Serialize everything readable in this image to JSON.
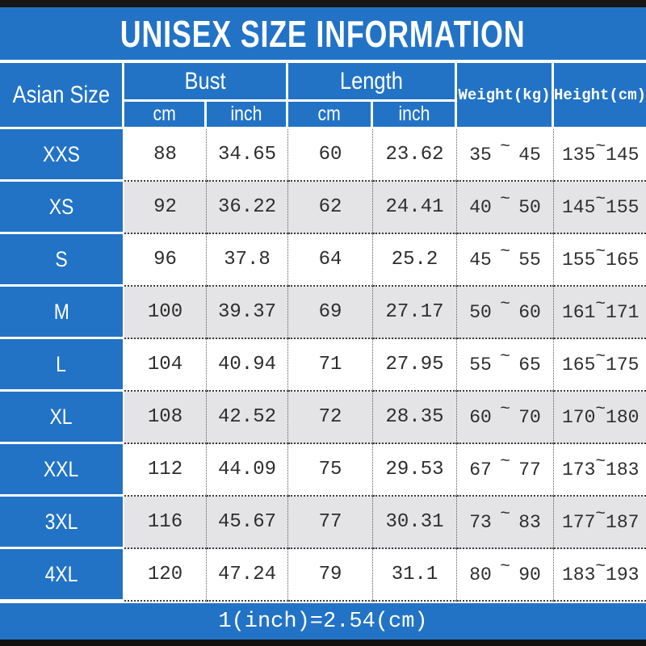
{
  "title": "UNISEX SIZE INFORMATION",
  "tilde": "~",
  "footer_note": "1(inch)=2.54(cm)",
  "header": {
    "asian_size": "Asian Size",
    "bust": "Bust",
    "length": "Length",
    "weight": "Weight(kg)",
    "height": "Height(cm)",
    "bust_cm": "cm",
    "bust_inch": "inch",
    "length_cm": "cm",
    "length_inch": "inch"
  },
  "colors": {
    "blue": "#2273c6",
    "alt_row_gray": "#e4e4e6",
    "bar_black": "#161616",
    "text_dark": "#2e2e2e",
    "white": "#ffffff"
  },
  "chart_data": {
    "type": "table",
    "title": "UNISEX SIZE INFORMATION",
    "columns": [
      "Asian Size",
      "Bust cm",
      "Bust inch",
      "Length cm",
      "Length inch",
      "Weight(kg)",
      "Height(cm)"
    ],
    "rows": [
      {
        "size": "XXS",
        "bust_cm": "88",
        "bust_inch": "34.65",
        "length_cm": "60",
        "length_inch": "23.62",
        "weight_min": "35",
        "weight_max": "45",
        "height_min": "135",
        "height_max": "145"
      },
      {
        "size": "XS",
        "bust_cm": "92",
        "bust_inch": "36.22",
        "length_cm": "62",
        "length_inch": "24.41",
        "weight_min": "40",
        "weight_max": "50",
        "height_min": "145",
        "height_max": "155"
      },
      {
        "size": "S",
        "bust_cm": "96",
        "bust_inch": "37.8",
        "length_cm": "64",
        "length_inch": "25.2",
        "weight_min": "45",
        "weight_max": "55",
        "height_min": "155",
        "height_max": "165"
      },
      {
        "size": "M",
        "bust_cm": "100",
        "bust_inch": "39.37",
        "length_cm": "69",
        "length_inch": "27.17",
        "weight_min": "50",
        "weight_max": "60",
        "height_min": "161",
        "height_max": "171"
      },
      {
        "size": "L",
        "bust_cm": "104",
        "bust_inch": "40.94",
        "length_cm": "71",
        "length_inch": "27.95",
        "weight_min": "55",
        "weight_max": "65",
        "height_min": "165",
        "height_max": "175"
      },
      {
        "size": "XL",
        "bust_cm": "108",
        "bust_inch": "42.52",
        "length_cm": "72",
        "length_inch": "28.35",
        "weight_min": "60",
        "weight_max": "70",
        "height_min": "170",
        "height_max": "180"
      },
      {
        "size": "XXL",
        "bust_cm": "112",
        "bust_inch": "44.09",
        "length_cm": "75",
        "length_inch": "29.53",
        "weight_min": "67",
        "weight_max": "77",
        "height_min": "173",
        "height_max": "183"
      },
      {
        "size": "3XL",
        "bust_cm": "116",
        "bust_inch": "45.67",
        "length_cm": "77",
        "length_inch": "30.31",
        "weight_min": "73",
        "weight_max": "83",
        "height_min": "177",
        "height_max": "187"
      },
      {
        "size": "4XL",
        "bust_cm": "120",
        "bust_inch": "47.24",
        "length_cm": "79",
        "length_inch": "31.1",
        "weight_min": "80",
        "weight_max": "90",
        "height_min": "183",
        "height_max": "193"
      }
    ],
    "note": "1(inch)=2.54(cm)",
    "layout": {
      "striped": true,
      "header_position": "top",
      "units_subheader": true
    }
  }
}
